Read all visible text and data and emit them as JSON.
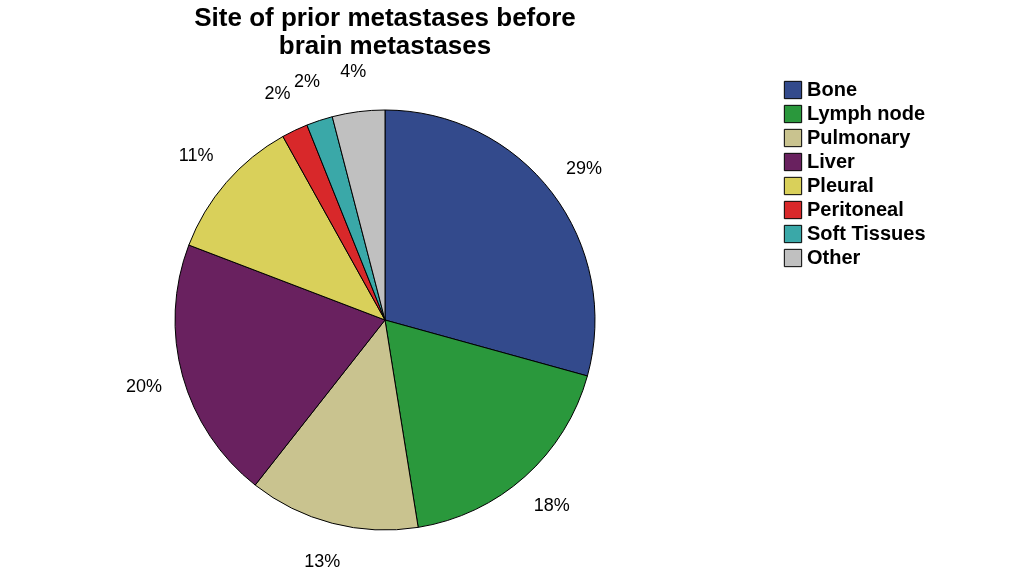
{
  "chart_data": {
    "type": "pie",
    "title": [
      "Site of prior metastases before",
      "brain metastases"
    ],
    "categories": [
      "Bone",
      "Lymph node",
      "Pulmonary",
      "Liver",
      "Pleural",
      "Peritoneal",
      "Soft Tissues",
      "Other"
    ],
    "values": [
      29,
      18,
      13,
      20,
      11,
      2,
      2,
      4
    ],
    "value_labels": [
      "29%",
      "18%",
      "13%",
      "20%",
      "11%",
      "2%",
      "2%",
      "4%"
    ],
    "colors": [
      "#334a8c",
      "#2a983c",
      "#c9c38f",
      "#69215f",
      "#d9d05a",
      "#d8282a",
      "#3aa8a8",
      "#c0c0c0"
    ],
    "legend": "top right"
  }
}
